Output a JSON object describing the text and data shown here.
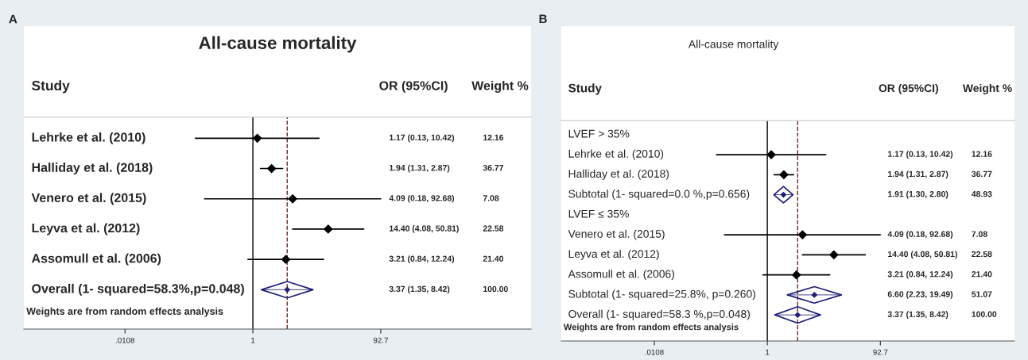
{
  "chart_data": [
    {
      "type": "scatter",
      "orientation": "horizontal",
      "title": "All-cause mortality",
      "ylabel": "Study",
      "annotations": [
        "A",
        "OR (95%CI)",
        "Weight %",
        "Weights are from random effects analysis",
        "1.17 (0.13, 10.42)",
        "1.94 (1.31, 2.87)",
        "4.09 (0.18, 92.68)",
        "14.40 (4.08, 50.81)",
        "3.21 (0.84, 12.24)",
        "3.37 (1.35, 8.42)",
        "12.16",
        "36.77",
        "7.08",
        "22.58",
        "21.40",
        "100.00"
      ],
      "categories": [
        "Lehrke et al. (2010)",
        "Halliday et al. (2018)",
        "Venero et al. (2015)",
        "Leyva et al. (2012)",
        "Assomull et al. (2006)",
        "Overall (1- squared=58.3%,p=0.048)"
      ],
      "series": [
        {
          "marker": "diamond",
          "color": "#000000",
          "values": [
            1.17,
            1.94,
            4.09,
            14.4,
            3.21,
            null
          ],
          "errors": [
            [
              0.13,
              10.42
            ],
            [
              1.31,
              2.87
            ],
            [
              0.18,
              92.68
            ],
            [
              4.08,
              50.81
            ],
            [
              0.84,
              12.24
            ],
            null
          ]
        },
        {
          "marker": "diamond",
          "color": "#1f1f7a",
          "values": [
            null,
            null,
            null,
            null,
            null,
            3.37
          ],
          "errors": [
            null,
            null,
            null,
            null,
            null,
            [
              1.35,
              8.42
            ]
          ]
        }
      ],
      "log": "x",
      "xlim": [
        0.0003,
        19000
      ],
      "xticks": [
        {
          "value": 0.0108,
          "label": ".0108"
        },
        1,
        92.7
      ],
      "ref_lines": [
        {
          "axis": "x",
          "value": 1,
          "color": "#000000",
          "line_style": "solid"
        },
        {
          "axis": "x",
          "value": 3.37,
          "color": "#8b1a1a",
          "line_style": "dashed"
        }
      ],
      "grid": false,
      "legend": false
    },
    {
      "type": "scatter",
      "orientation": "horizontal",
      "title": "All-cause mortality",
      "ylabel": "Study",
      "annotations": [
        "B",
        "OR (95%CI)",
        "Weight %",
        "Weights are from random effects analysis",
        "1.17 (0.13, 10.42)",
        "1.94 (1.31, 2.87)",
        "1.91 (1.30, 2.80)",
        "4.09 (0.18, 92.68)",
        "14.40 (4.08, 50.81)",
        "3.21 (0.84, 12.24)",
        "6.60 (2.23, 19.49)",
        "3.37 (1.35, 8.42)",
        "12.16",
        "36.77",
        "48.93",
        "7.08",
        "22.58",
        "21.40",
        "51.07",
        "100.00"
      ],
      "categories": [
        "LVEF > 35%",
        "Lehrke et al. (2010)",
        "Halliday et al. (2018)",
        "Subtotal (1- squared=0.0 %,p=0.656)",
        "LVEF ≤ 35%",
        "Venero et al. (2015)",
        "Leyva et al. (2012)",
        "Assomull et al. (2006)",
        "Subtotal (1- squared=25.8%, p=0.260)",
        "Overall (1- squared=58.3 %,p=0.048)"
      ],
      "series": [
        {
          "marker": "diamond",
          "color": "#000000",
          "values": [
            null,
            1.17,
            1.94,
            null,
            null,
            4.09,
            14.4,
            3.21,
            null,
            null
          ],
          "errors": [
            null,
            [
              0.13,
              10.42
            ],
            [
              1.31,
              2.87
            ],
            null,
            null,
            [
              0.18,
              92.68
            ],
            [
              4.08,
              50.81
            ],
            [
              0.84,
              12.24
            ],
            null,
            null
          ]
        },
        {
          "marker": "diamond",
          "color": "#1f1f7a",
          "values": [
            null,
            null,
            null,
            1.91,
            null,
            null,
            null,
            null,
            6.6,
            3.37
          ],
          "errors": [
            null,
            null,
            null,
            [
              1.3,
              2.8
            ],
            null,
            null,
            null,
            null,
            [
              2.23,
              19.49
            ],
            [
              1.35,
              8.42
            ]
          ]
        }
      ],
      "log": "x",
      "xlim": [
        0.00026,
        20000
      ],
      "xticks": [
        {
          "value": 0.0108,
          "label": ".0108"
        },
        1,
        92.7
      ],
      "ref_lines": [
        {
          "axis": "x",
          "value": 1,
          "color": "#000000",
          "line_style": "solid"
        },
        {
          "axis": "x",
          "value": 3.37,
          "color": "#8b1a1a",
          "line_style": "dashed"
        }
      ],
      "grid": false,
      "legend": false
    }
  ]
}
